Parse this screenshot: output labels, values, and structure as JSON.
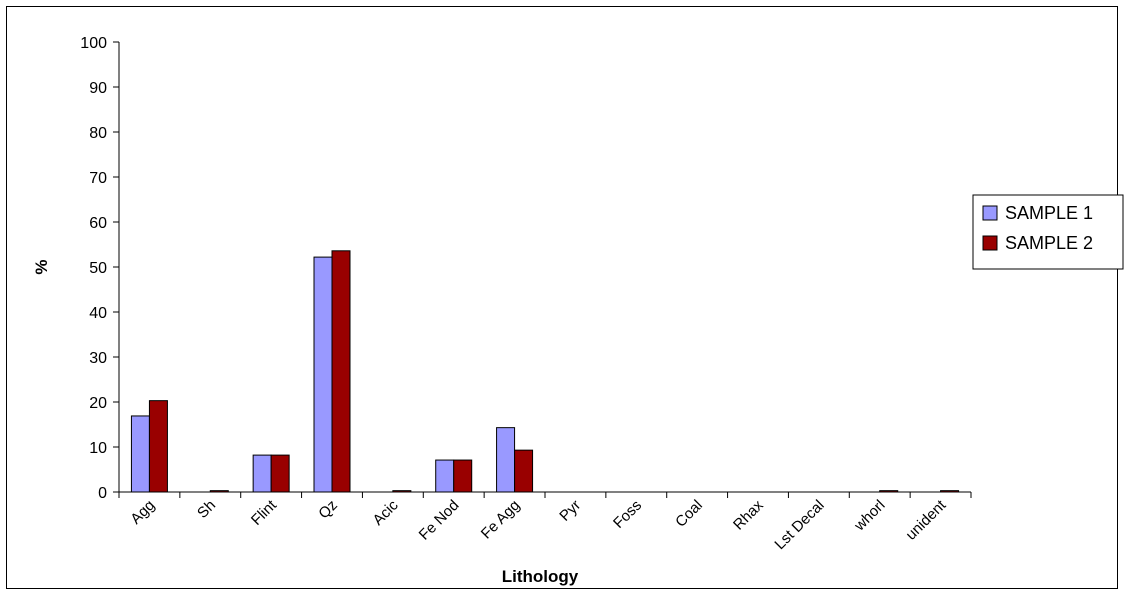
{
  "chart_data": {
    "type": "bar",
    "title": "",
    "xlabel": "Lithology",
    "ylabel": "%",
    "ylim": [
      0,
      100
    ],
    "yticks": [
      0,
      10,
      20,
      30,
      40,
      50,
      60,
      70,
      80,
      90,
      100
    ],
    "grid": false,
    "legend_position": "right",
    "categories": [
      "Agg",
      "Sh",
      "Flint",
      "Qz",
      "Acic",
      "Fe Nod",
      "Fe Agg",
      "Pyr",
      "Foss",
      "Coal",
      "Rhax",
      "Lst Decal",
      "whorl",
      "unident"
    ],
    "series": [
      {
        "name": "SAMPLE 1",
        "color": "#9999ff",
        "values": [
          16.9,
          0,
          8.2,
          52.2,
          0,
          7.1,
          14.3,
          0,
          0,
          0,
          0,
          0,
          0,
          0
        ]
      },
      {
        "name": "SAMPLE 2",
        "color": "#990000",
        "values": [
          20.3,
          0.3,
          8.2,
          53.6,
          0.3,
          7.1,
          9.3,
          0,
          0,
          0,
          0,
          0,
          0.3,
          0.3
        ]
      }
    ]
  }
}
